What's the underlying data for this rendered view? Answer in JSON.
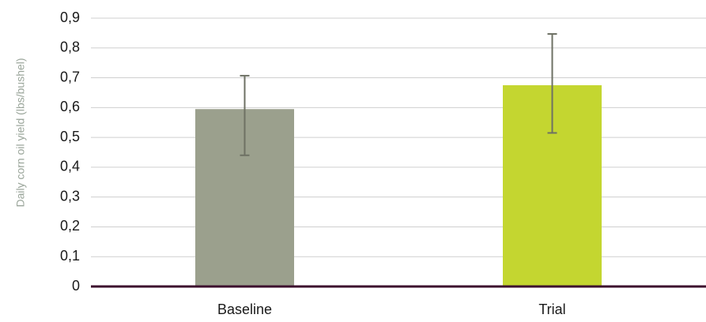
{
  "chart_data": {
    "type": "bar",
    "title": "",
    "xlabel": "",
    "ylabel": "Daily corn oil yield (lbs/bushel)",
    "categories": [
      "Baseline",
      "Trial"
    ],
    "series": [
      {
        "values": [
          0.595,
          0.675
        ],
        "error_low": [
          0.44,
          0.515
        ],
        "error_high": [
          0.707,
          0.847
        ]
      }
    ],
    "bar_colors": [
      "#9ba08d",
      "#c4d630"
    ],
    "yticks": [
      "0",
      "0,1",
      "0,2",
      "0,3",
      "0,4",
      "0,5",
      "0,6",
      "0,7",
      "0,8",
      "0,9"
    ],
    "ylim": [
      0,
      0.9
    ],
    "grid": true,
    "legend": "none",
    "colors": {
      "gridline": "#cfcfcf",
      "baseline_axis": "#3d0f2e",
      "error_bar": "#6e7164",
      "axis_title": "#9aa59a"
    }
  }
}
